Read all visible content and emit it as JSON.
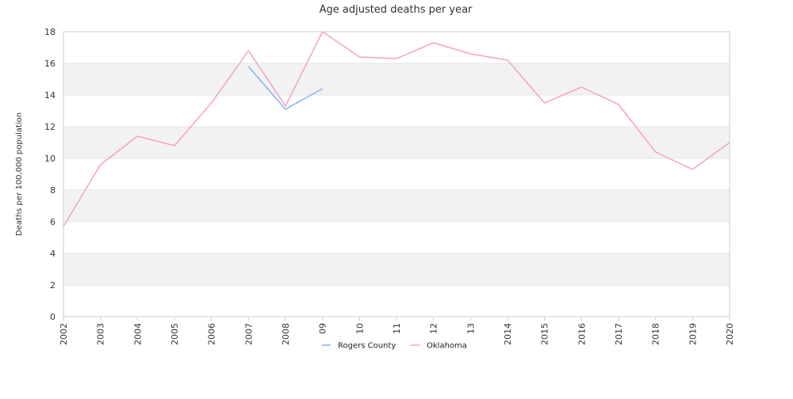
{
  "chart_data": {
    "type": "line",
    "title": "Age adjusted deaths per year",
    "xlabel": "",
    "ylabel": "Deaths per 100,000 population",
    "ylim": [
      0,
      18
    ],
    "yticks": [
      0,
      2,
      4,
      6,
      8,
      10,
      12,
      14,
      16,
      18
    ],
    "categories": [
      "2002",
      "2003",
      "2004",
      "2005",
      "2006",
      "2007",
      "2008",
      "09",
      "10",
      "11",
      "12",
      "13",
      "2014",
      "2015",
      "2016",
      "2017",
      "2018",
      "2019",
      "2020"
    ],
    "grid": true,
    "legend_position": "bottom",
    "series": [
      {
        "name": "Rogers County",
        "color": "#7cb5ec",
        "values": [
          null,
          null,
          null,
          null,
          null,
          15.8,
          13.1,
          14.4,
          null,
          null,
          null,
          null,
          null,
          null,
          null,
          null,
          null,
          null,
          null
        ]
      },
      {
        "name": "Oklahoma",
        "color": "#f7a1c4",
        "values": [
          5.7,
          9.6,
          11.4,
          10.8,
          13.5,
          16.8,
          13.3,
          18.0,
          16.4,
          16.3,
          17.3,
          16.6,
          16.2,
          13.5,
          14.5,
          13.4,
          10.4,
          9.3,
          11.0
        ]
      }
    ]
  }
}
